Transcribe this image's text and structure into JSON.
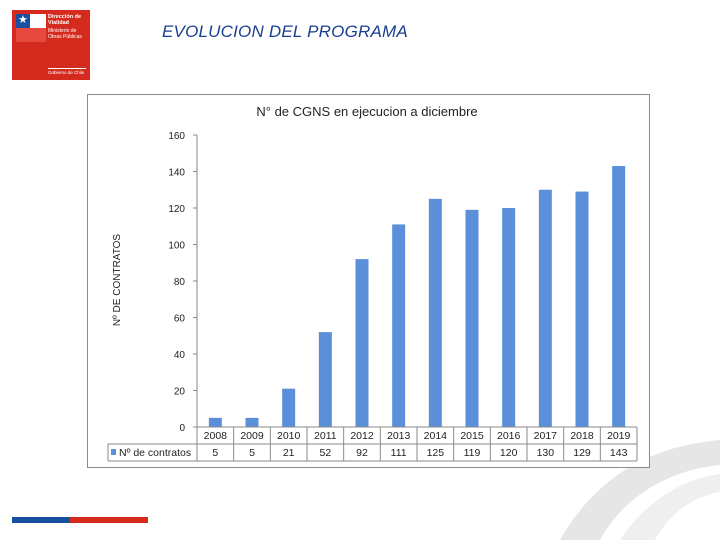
{
  "header": {
    "title": "EVOLUCION DEL PROGRAMA",
    "logo": {
      "name": "Dirección de Vialidad",
      "ministry": "Ministerio de Obras Públicas",
      "gov": "Gobierno de Chile"
    }
  },
  "colors": {
    "bar": "#5b8fd9",
    "title": "#1a3f8f",
    "brand_blue": "#1a4fa0",
    "brand_red": "#d52b1e"
  },
  "chart_data": {
    "type": "bar",
    "title": "N° de CGNS en ejecucion a diciembre",
    "xlabel": "",
    "ylabel": "Nº DE CONTRATOS",
    "ylim": [
      0,
      160
    ],
    "yticks": [
      0,
      20,
      40,
      60,
      80,
      100,
      120,
      140,
      160
    ],
    "categories": [
      "2008",
      "2009",
      "2010",
      "2011",
      "2012",
      "2013",
      "2014",
      "2015",
      "2016",
      "2017",
      "2018",
      "2019"
    ],
    "series": [
      {
        "name": "Nº de contratos",
        "values": [
          5,
          5,
          21,
          52,
          92,
          111,
          125,
          119,
          120,
          130,
          129,
          143
        ]
      }
    ],
    "grid": false,
    "legend": "data-table-left"
  }
}
